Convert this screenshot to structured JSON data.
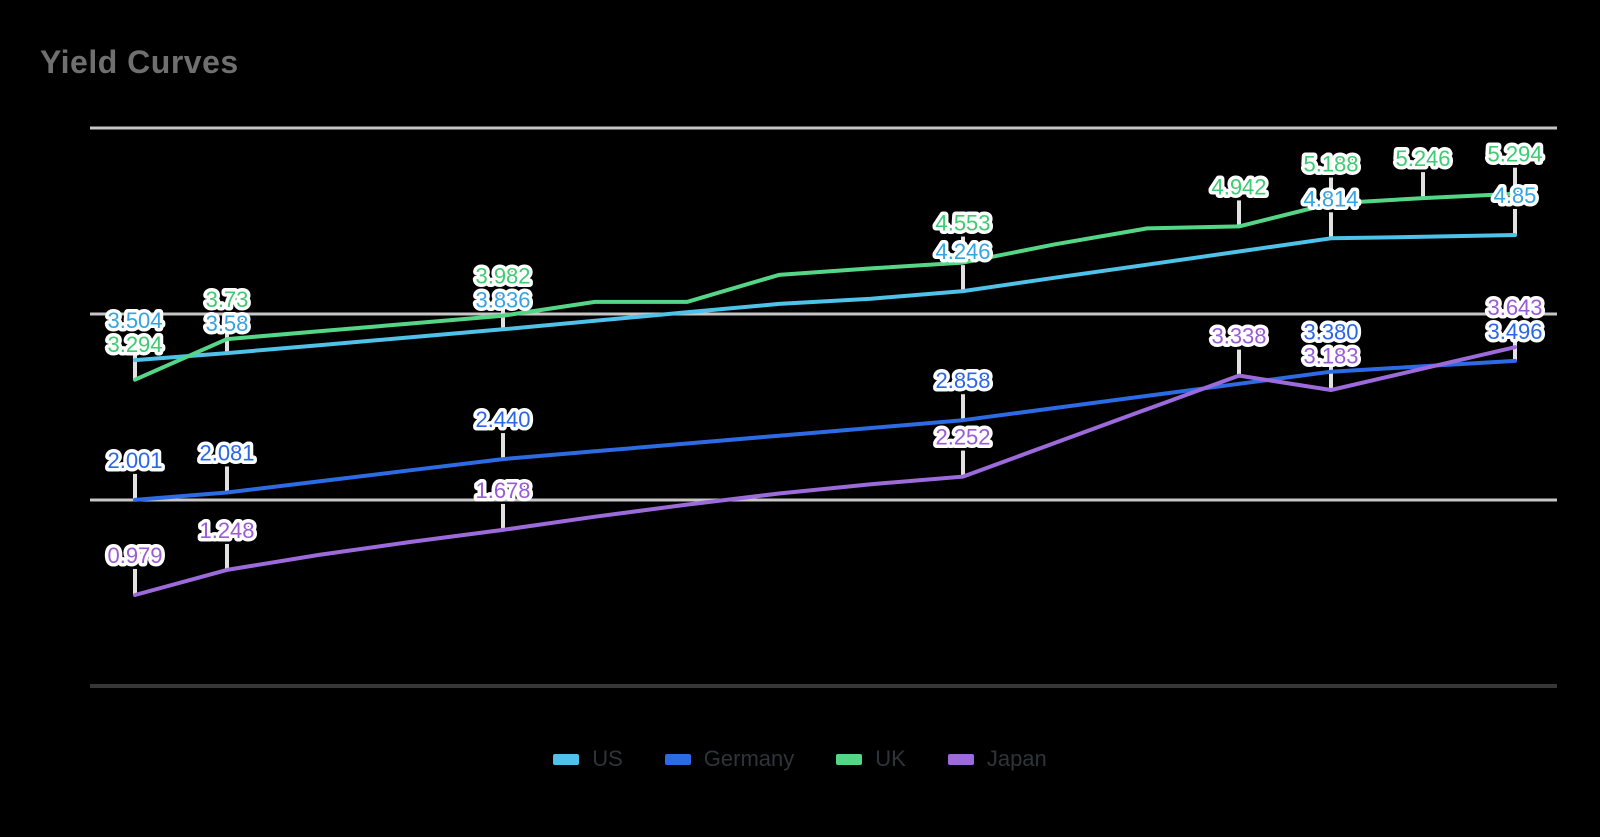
{
  "title": "Yield Curves",
  "styles": {
    "background": "#000000",
    "title_color": "#6f6f6f",
    "grid_color": "#c6c6c6",
    "axis_color": "#363636",
    "callout_color": "#e2e2e2",
    "label_halo": "#ffffff",
    "legend_text_color": "#2e343a"
  },
  "chart_data": {
    "type": "line",
    "title": "Yield Curves",
    "xlabel": "",
    "ylabel": "",
    "x_tick_labels_visible": false,
    "ylim": [
      0,
      6
    ],
    "y_gridlines": [
      2,
      4,
      6
    ],
    "y_axis_value": 0,
    "grid": "horizontal",
    "legend_position": "bottom",
    "series": [
      {
        "name": "US",
        "color": "#4fc2e9",
        "label_color": "#36a3e3",
        "points": [
          {
            "v": 3.504,
            "label": "3.504"
          },
          {
            "v": 3.58,
            "label": "3.58"
          },
          {
            "v": 3.665
          },
          {
            "v": 3.75
          },
          {
            "v": 3.836,
            "label": "3.836"
          },
          {
            "v": 3.927
          },
          {
            "v": 4.018
          },
          {
            "v": 4.109
          },
          {
            "v": 4.164
          },
          {
            "v": 4.246,
            "label": "4.246"
          },
          {
            "v": 4.39
          },
          {
            "v": 4.53
          },
          {
            "v": 4.672
          },
          {
            "v": 4.814,
            "label": "4.814"
          },
          {
            "v": 4.83
          },
          {
            "v": 4.85,
            "label": "4.85"
          }
        ]
      },
      {
        "name": "Germany",
        "color": "#2d6be5",
        "label_color": "#2b66e8",
        "points": [
          {
            "v": 2.001,
            "label": "2.001"
          },
          {
            "v": 2.081,
            "label": "2.081"
          },
          {
            "v": 2.2
          },
          {
            "v": 2.32
          },
          {
            "v": 2.44,
            "label": "2.440"
          },
          {
            "v": 2.524
          },
          {
            "v": 2.607
          },
          {
            "v": 2.691
          },
          {
            "v": 2.774
          },
          {
            "v": 2.858,
            "label": "2.858"
          },
          {
            "v": 2.989
          },
          {
            "v": 3.119
          },
          {
            "v": 3.25
          },
          {
            "v": 3.38,
            "label": "3.380"
          },
          {
            "v": 3.438
          },
          {
            "v": 3.496,
            "label": "3.496"
          }
        ]
      },
      {
        "name": "UK",
        "color": "#55d687",
        "label_color": "#3ecb72",
        "points": [
          {
            "v": 3.294,
            "label": "3.294"
          },
          {
            "v": 3.73,
            "label": "3.73"
          },
          {
            "v": 3.814
          },
          {
            "v": 3.898
          },
          {
            "v": 3.982,
            "label": "3.982"
          },
          {
            "v": 4.13
          },
          {
            "v": 4.13
          },
          {
            "v": 4.42
          },
          {
            "v": 4.49
          },
          {
            "v": 4.553,
            "label": "4.553"
          },
          {
            "v": 4.75
          },
          {
            "v": 4.92
          },
          {
            "v": 4.942,
            "label": "4.942"
          },
          {
            "v": 5.188,
            "label": "5.188"
          },
          {
            "v": 5.246,
            "label": "5.246"
          },
          {
            "v": 5.294,
            "label": "5.294"
          }
        ]
      },
      {
        "name": "Japan",
        "color": "#9d6adb",
        "label_color": "#9a5cd6",
        "points": [
          {
            "v": 0.979,
            "label": "0.979"
          },
          {
            "v": 1.248,
            "label": "1.248"
          },
          {
            "v": 1.41
          },
          {
            "v": 1.55
          },
          {
            "v": 1.678,
            "label": "1.678"
          },
          {
            "v": 1.82
          },
          {
            "v": 1.95
          },
          {
            "v": 2.07
          },
          {
            "v": 2.17
          },
          {
            "v": 2.252,
            "label": "2.252"
          },
          {
            "v": 2.614
          },
          {
            "v": 2.976
          },
          {
            "v": 3.338,
            "label": "3.338"
          },
          {
            "v": 3.183,
            "label": "3.183"
          },
          {
            "v": 3.413
          },
          {
            "v": 3.643,
            "label": "3.643"
          }
        ]
      }
    ]
  },
  "legend": {
    "items": [
      "US",
      "Germany",
      "UK",
      "Japan"
    ]
  }
}
